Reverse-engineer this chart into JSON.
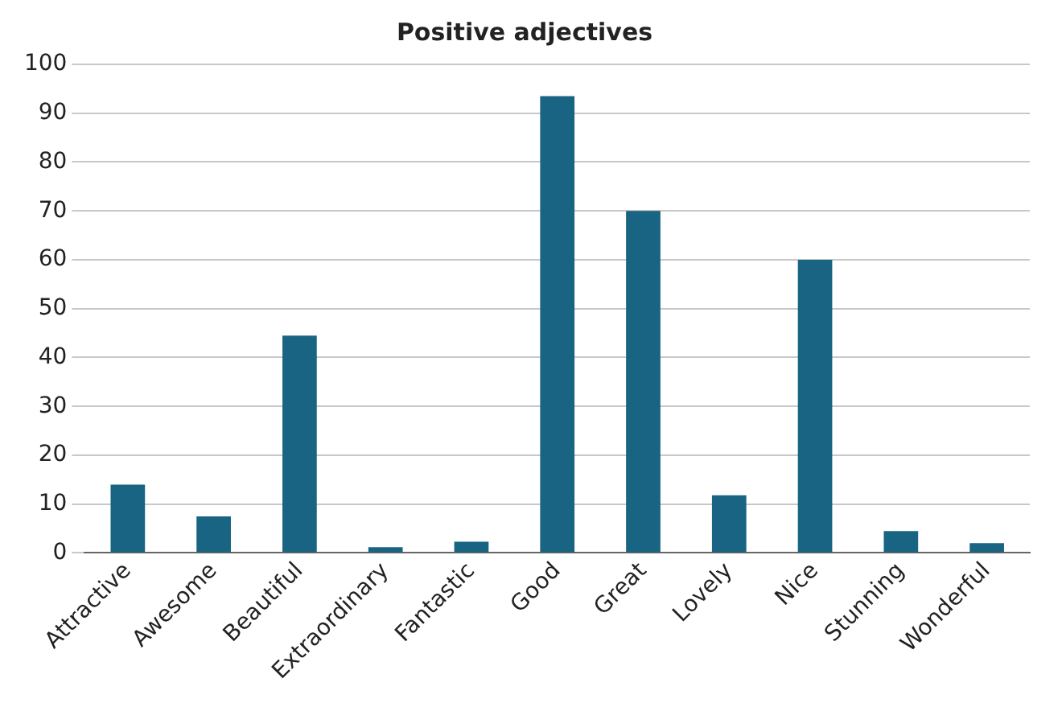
{
  "chart_data": {
    "type": "bar",
    "title": "Positive adjectives",
    "categories": [
      "Attractive",
      "Awesome",
      "Beautiful",
      "Extraordinary",
      "Fantastic",
      "Good",
      "Great",
      "Lovely",
      "Nice",
      "Stunning",
      "Wonderful"
    ],
    "values": [
      14,
      7.5,
      44.5,
      1.2,
      2.3,
      93.5,
      70,
      11.8,
      60,
      4.5,
      2
    ],
    "color": "#186482",
    "ylim": [
      0,
      100
    ],
    "yticks": [
      0,
      10,
      20,
      30,
      40,
      50,
      60,
      70,
      80,
      90,
      100
    ],
    "grid": "y"
  }
}
